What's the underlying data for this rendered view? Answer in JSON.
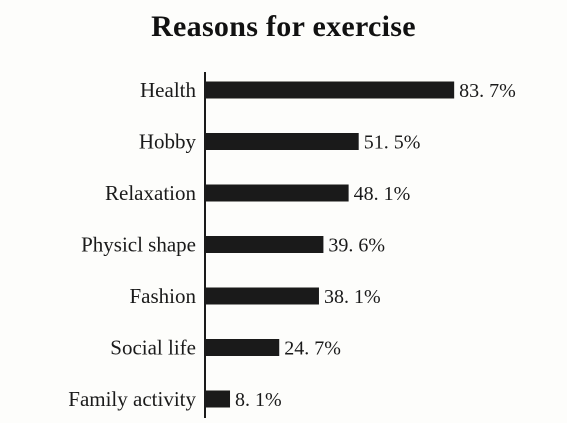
{
  "chart_data": {
    "type": "bar",
    "orientation": "horizontal",
    "title": "Reasons for exercise",
    "categories": [
      "Health",
      "Hobby",
      "Relaxation",
      "Physicl shape",
      "Fashion",
      "Social life",
      "Family activity"
    ],
    "values": [
      83.7,
      51.5,
      48.1,
      39.6,
      38.1,
      24.7,
      8.1
    ],
    "value_labels": [
      "83. 7%",
      "51. 5%",
      "48. 1%",
      "39. 6%",
      "38. 1%",
      "24. 7%",
      "8. 1%"
    ],
    "xlabel": "",
    "ylabel": "",
    "xlim": [
      0,
      100
    ],
    "grid": false,
    "bar_color": "#1a1a1a"
  }
}
